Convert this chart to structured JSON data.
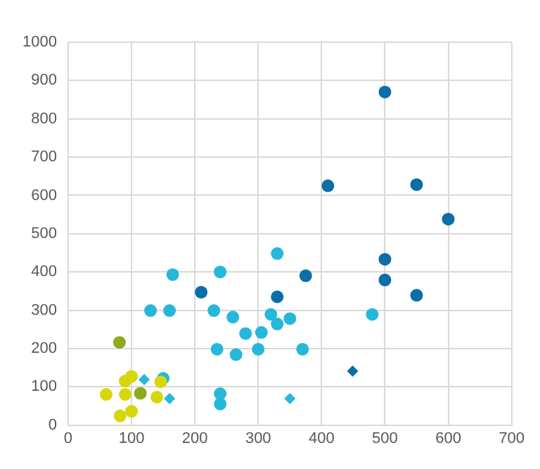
{
  "chart_data": {
    "type": "scatter",
    "xlim": [
      0,
      700
    ],
    "xticks": [
      0,
      100,
      200,
      300,
      400,
      500,
      600,
      700
    ],
    "ylim": [
      0,
      1000
    ],
    "yticks": [
      0,
      100,
      200,
      300,
      400,
      500,
      600,
      700,
      800,
      900,
      1000
    ],
    "grid": true,
    "legend": false,
    "series": [
      {
        "color": "#0b6ea8",
        "marker": "circle",
        "x": [
          500,
          410,
          550,
          600,
          500,
          500,
          550,
          375,
          330,
          210
        ],
        "values": [
          870,
          625,
          628,
          538,
          433,
          379,
          339,
          390,
          335,
          347
        ]
      },
      {
        "color": "#25b8da",
        "marker": "circle",
        "x": [
          165,
          240,
          130,
          160,
          230,
          260,
          280,
          305,
          320,
          330,
          330,
          350,
          235,
          265,
          300,
          370,
          480,
          150
        ],
        "values": [
          393,
          400,
          299,
          299,
          299,
          282,
          239,
          242,
          289,
          264,
          448,
          278,
          198,
          184,
          198,
          198,
          289,
          122
        ]
      },
      {
        "color": "#d6d60c",
        "marker": "circle",
        "x": [
          60,
          90,
          90,
          100,
          140,
          146
        ],
        "values": [
          80,
          80,
          115,
          127,
          73,
          113
        ]
      },
      {
        "color": "#8cac1c",
        "marker": "circle",
        "x": [
          81,
          114
        ],
        "values": [
          216,
          83
        ]
      },
      {
        "color": "#d6d60c",
        "marker": "circle",
        "x": [
          82,
          100
        ],
        "values": [
          24,
          36
        ]
      },
      {
        "color": "#25b8da",
        "marker": "circle",
        "x": [
          240,
          240
        ],
        "values": [
          82,
          55
        ]
      },
      {
        "color": "#25b8da",
        "marker": "diamond",
        "x": [
          120,
          160,
          350
        ],
        "values": [
          119,
          69,
          69
        ]
      },
      {
        "color": "#0b6ea8",
        "marker": "diamond",
        "x": [
          449
        ],
        "values": [
          141
        ]
      }
    ]
  }
}
